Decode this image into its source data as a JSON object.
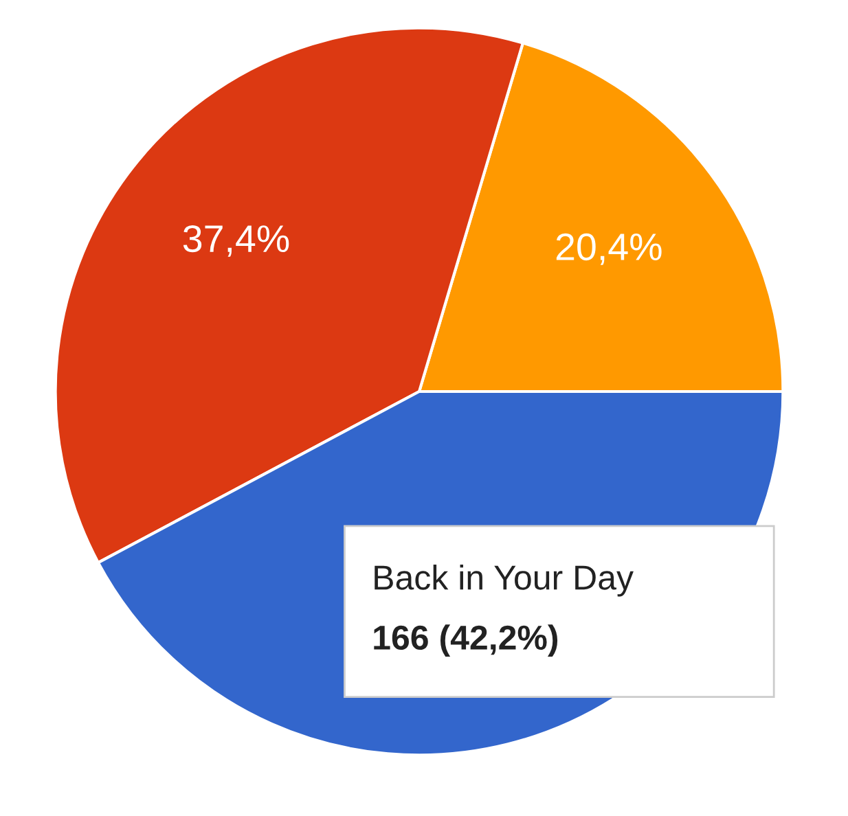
{
  "chart_data": {
    "type": "pie",
    "categories": [
      null,
      null,
      "Back in Your Day"
    ],
    "values": [
      20.4,
      37.4,
      42.2
    ],
    "colors": [
      "#ff9900",
      "#dc3912",
      "#3366cc"
    ],
    "value_labels": [
      "20,4%",
      "37,4%",
      null
    ],
    "annotations": [
      "166 (42,2%)"
    ],
    "legend": false
  }
}
